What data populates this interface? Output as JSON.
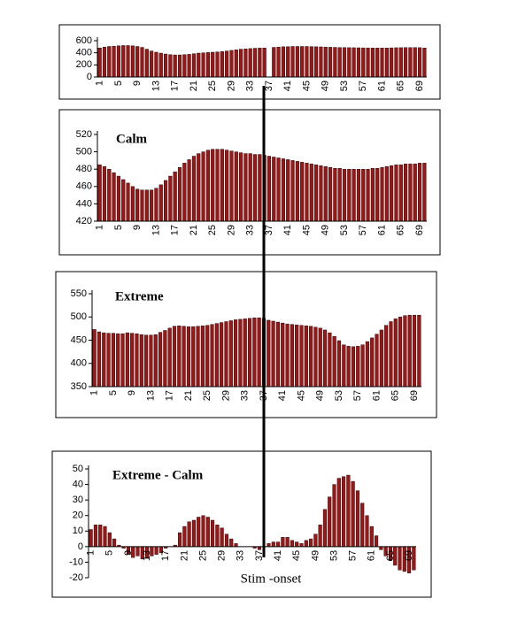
{
  "chart_data": [
    {
      "type": "bar",
      "color": "#a01414",
      "categories": [
        "1",
        null,
        null,
        null,
        "5",
        null,
        null,
        null,
        "9",
        null,
        null,
        null,
        "13",
        null,
        null,
        null,
        "17",
        null,
        null,
        null,
        "21",
        null,
        null,
        null,
        "25",
        null,
        null,
        null,
        "29",
        null,
        null,
        null,
        "33",
        null,
        null,
        null,
        "37",
        null,
        null,
        null,
        "41",
        null,
        null,
        null,
        "45",
        null,
        null,
        null,
        "49",
        null,
        null,
        null,
        "53",
        null,
        null,
        null,
        "57",
        null,
        null,
        null,
        "61",
        null,
        null,
        null,
        "65",
        null,
        null,
        null,
        "69",
        null
      ],
      "values": [
        480,
        495,
        505,
        510,
        515,
        520,
        520,
        515,
        505,
        490,
        460,
        430,
        410,
        395,
        380,
        370,
        365,
        365,
        370,
        375,
        385,
        395,
        400,
        405,
        410,
        415,
        420,
        430,
        440,
        450,
        460,
        465,
        470,
        475,
        478,
        480,
        null,
        490,
        495,
        500,
        502,
        505,
        505,
        505,
        505,
        503,
        500,
        498,
        495,
        492,
        490,
        488,
        486,
        485,
        484,
        483,
        482,
        481,
        480,
        480,
        480,
        480,
        482,
        484,
        485,
        486,
        487,
        487,
        485,
        480
      ],
      "ylim": [
        0,
        600
      ],
      "yticks": [
        0,
        200,
        400,
        600
      ]
    },
    {
      "type": "bar",
      "title": "Calm",
      "color": "#a01414",
      "categories": [
        "1",
        null,
        null,
        null,
        "5",
        null,
        null,
        null,
        "9",
        null,
        null,
        null,
        "13",
        null,
        null,
        null,
        "17",
        null,
        null,
        null,
        "21",
        null,
        null,
        null,
        "25",
        null,
        null,
        null,
        "29",
        null,
        null,
        null,
        "33",
        null,
        null,
        null,
        "37",
        null,
        null,
        null,
        "41",
        null,
        null,
        null,
        "45",
        null,
        null,
        null,
        "49",
        null,
        null,
        null,
        "53",
        null,
        null,
        null,
        "57",
        null,
        null,
        null,
        "61",
        null,
        null,
        null,
        "65",
        null,
        null,
        null,
        "69",
        null
      ],
      "values": [
        485,
        483,
        480,
        476,
        472,
        468,
        464,
        460,
        457,
        456,
        456,
        456,
        458,
        462,
        467,
        472,
        477,
        482,
        487,
        491,
        495,
        498,
        500,
        502,
        503,
        503,
        503,
        502,
        501,
        500,
        499,
        498,
        498,
        497,
        497,
        496,
        495,
        494,
        493,
        492,
        491,
        490,
        489,
        488,
        487,
        486,
        485,
        484,
        483,
        482,
        481,
        481,
        480,
        480,
        480,
        480,
        480,
        480,
        481,
        481,
        482,
        483,
        484,
        485,
        485,
        486,
        486,
        486,
        487,
        487
      ],
      "ylim": [
        420,
        520
      ],
      "yticks": [
        420,
        440,
        460,
        480,
        500,
        520
      ]
    },
    {
      "type": "bar",
      "title": "Extreme",
      "color": "#a01414",
      "categories": [
        "1",
        null,
        null,
        null,
        "5",
        null,
        null,
        null,
        "9",
        null,
        null,
        null,
        "13",
        null,
        null,
        null,
        "17",
        null,
        null,
        null,
        "21",
        null,
        null,
        null,
        "25",
        null,
        null,
        null,
        "29",
        null,
        null,
        null,
        "33",
        null,
        null,
        null,
        "37",
        null,
        null,
        null,
        "41",
        null,
        null,
        null,
        "45",
        null,
        null,
        null,
        "49",
        null,
        null,
        null,
        "53",
        null,
        null,
        null,
        "57",
        null,
        null,
        null,
        "61",
        null,
        null,
        null,
        "65",
        null,
        null,
        null,
        "69",
        null
      ],
      "values": [
        473,
        468,
        466,
        465,
        465,
        464,
        464,
        466,
        465,
        464,
        462,
        461,
        461,
        462,
        467,
        471,
        476,
        480,
        481,
        480,
        479,
        479,
        480,
        481,
        482,
        484,
        486,
        488,
        490,
        492,
        494,
        495,
        496,
        497,
        498,
        498,
        497,
        493,
        491,
        489,
        487,
        485,
        484,
        483,
        482,
        481,
        480,
        478,
        476,
        472,
        466,
        458,
        449,
        440,
        437,
        436,
        437,
        440,
        447,
        455,
        463,
        472,
        482,
        490,
        496,
        500,
        503,
        504,
        504,
        504
      ],
      "ylim": [
        350,
        550
      ],
      "yticks": [
        350,
        400,
        450,
        500,
        550
      ]
    },
    {
      "type": "bar",
      "title": "Extreme - Calm",
      "annotation": "Stim -onset",
      "color": "#a01414",
      "categories": [
        "1",
        null,
        null,
        null,
        "5",
        null,
        null,
        null,
        "9",
        null,
        null,
        null,
        "13",
        null,
        null,
        null,
        "17",
        null,
        null,
        null,
        "21",
        null,
        null,
        null,
        "25",
        null,
        null,
        null,
        "29",
        null,
        null,
        null,
        "33",
        null,
        null,
        null,
        "37",
        null,
        null,
        null,
        "41",
        null,
        null,
        null,
        "45",
        null,
        null,
        null,
        "49",
        null,
        null,
        null,
        "53",
        null,
        null,
        null,
        "57",
        null,
        null,
        null,
        "61",
        null,
        null,
        null,
        "65",
        null,
        null,
        null,
        "69",
        null
      ],
      "values": [
        11,
        14,
        14,
        13,
        9,
        5,
        1,
        -1,
        -5,
        -7,
        -6,
        -8,
        -7,
        -6,
        -5,
        -4,
        -1,
        0,
        1,
        9,
        13,
        16,
        17,
        19,
        20,
        19,
        17,
        14,
        12,
        8,
        5,
        2,
        0,
        0,
        0,
        -1,
        -2,
        0,
        2,
        3,
        3,
        6,
        6,
        4,
        3,
        2,
        4,
        5,
        8,
        14,
        24,
        32,
        40,
        44,
        45,
        46,
        42,
        36,
        28,
        20,
        13,
        7,
        -2,
        -6,
        -9,
        -12,
        -15,
        -16,
        -17,
        -15
      ],
      "ylim": [
        -20,
        50
      ],
      "yticks": [
        -20,
        -10,
        0,
        10,
        20,
        30,
        40,
        50
      ]
    }
  ]
}
